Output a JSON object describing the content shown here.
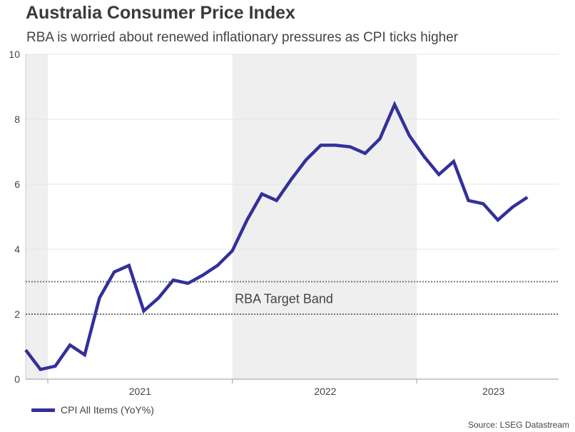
{
  "header": {
    "title": "Australia Consumer Price Index",
    "subtitle": "RBA is worried about renewed inflationary pressures as CPI ticks higher"
  },
  "colors": {
    "series": "#33309b",
    "shade": "#efefef",
    "grid": "#e6e6e6",
    "band": "#777777"
  },
  "chart_data": {
    "type": "line",
    "title": "Australia Consumer Price Index",
    "xlabel": "",
    "ylabel": "",
    "ylim": [
      0,
      10
    ],
    "yticks": [
      0,
      2,
      4,
      6,
      8,
      10
    ],
    "x_index_range": [
      0,
      35
    ],
    "year_labels": [
      {
        "label": "2021",
        "center_index": 7.75
      },
      {
        "label": "2022",
        "center_index": 20.3
      },
      {
        "label": "2023",
        "center_index": 31.7
      }
    ],
    "year_boundaries": [
      1.5,
      14,
      26.5
    ],
    "shaded_ranges": [
      [
        0,
        1.5
      ],
      [
        14,
        26.5
      ]
    ],
    "target_band": {
      "label": "RBA Target Band",
      "low": 2,
      "high": 3
    },
    "series": [
      {
        "name": "CPI All Items (YoY%)",
        "values": [
          0.9,
          0.3,
          0.4,
          1.05,
          0.75,
          2.5,
          3.3,
          3.5,
          2.1,
          2.5,
          3.05,
          2.95,
          3.2,
          3.5,
          3.95,
          4.9,
          5.7,
          5.5,
          6.15,
          6.75,
          7.2,
          7.2,
          7.15,
          6.95,
          7.4,
          8.45,
          7.5,
          6.85,
          6.3,
          6.7,
          5.5,
          5.4,
          4.9,
          5.3,
          5.6
        ]
      }
    ]
  },
  "legend": {
    "label": "CPI All Items (YoY%)"
  },
  "footer": {
    "source": "Source: LSEG Datastream"
  }
}
